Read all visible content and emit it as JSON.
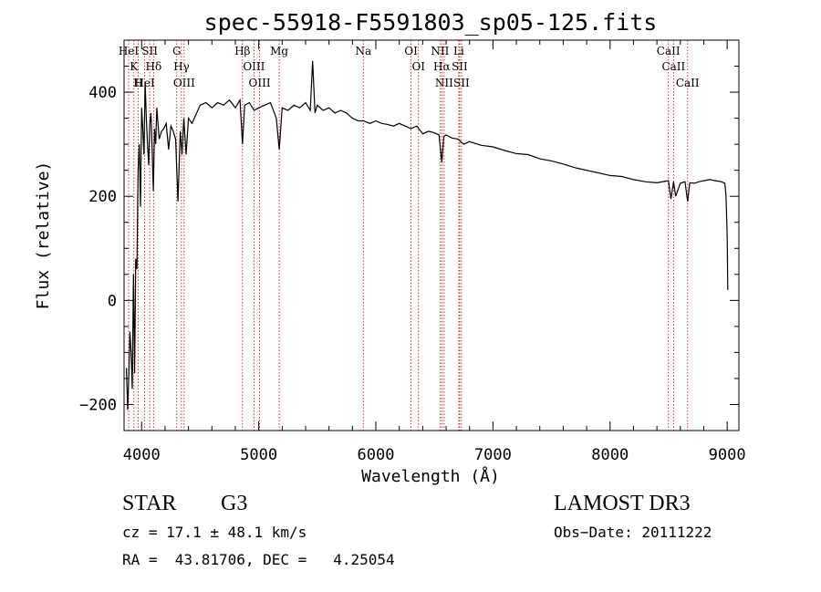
{
  "chart_data": {
    "type": "line",
    "title": "spec-55918-F5591803_sp05-125.fits",
    "xlabel": "Wavelength (Å)",
    "ylabel": "Flux (relative)",
    "xlim": [
      3850,
      9100
    ],
    "ylim": [
      -250,
      500
    ],
    "x_ticks": [
      4000,
      5000,
      6000,
      7000,
      8000,
      9000
    ],
    "x_tick_labels": [
      "4000",
      "5000",
      "6000",
      "7000",
      "8000",
      "9000"
    ],
    "y_ticks": [
      -200,
      0,
      200,
      400
    ],
    "y_tick_labels": [
      "−200",
      "0",
      "200",
      "400"
    ],
    "x_minor_step": 200,
    "y_minor_step": 50,
    "grid": false,
    "spectrum_color": "#000000",
    "line_marker_color": "#cc0000",
    "series": [
      {
        "name": "flux",
        "x": [
          3870,
          3880,
          3890,
          3900,
          3910,
          3920,
          3930,
          3940,
          3950,
          3960,
          3970,
          3980,
          3990,
          4000,
          4010,
          4020,
          4030,
          4040,
          4050,
          4060,
          4070,
          4080,
          4090,
          4100,
          4110,
          4120,
          4130,
          4140,
          4150,
          4170,
          4190,
          4210,
          4230,
          4250,
          4270,
          4290,
          4310,
          4330,
          4345,
          4360,
          4380,
          4400,
          4430,
          4460,
          4500,
          4550,
          4600,
          4650,
          4700,
          4750,
          4800,
          4840,
          4861,
          4880,
          4920,
          4960,
          5000,
          5050,
          5100,
          5150,
          5175,
          5200,
          5250,
          5300,
          5350,
          5400,
          5440,
          5460,
          5480,
          5500,
          5550,
          5600,
          5650,
          5700,
          5750,
          5800,
          5850,
          5893,
          5950,
          6000,
          6050,
          6100,
          6150,
          6200,
          6250,
          6300,
          6350,
          6400,
          6450,
          6500,
          6540,
          6563,
          6580,
          6600,
          6650,
          6700,
          6750,
          6800,
          6900,
          7000,
          7100,
          7200,
          7300,
          7400,
          7500,
          7600,
          7700,
          7800,
          7900,
          8000,
          8100,
          8200,
          8300,
          8400,
          8498,
          8520,
          8542,
          8560,
          8600,
          8640,
          8662,
          8680,
          8720,
          8760,
          8800,
          8850,
          8900,
          8950,
          8980,
          8990,
          9000,
          9005
        ],
        "values": [
          -130,
          -210,
          -150,
          -60,
          -100,
          -170,
          50,
          -140,
          80,
          60,
          250,
          300,
          180,
          370,
          330,
          280,
          420,
          350,
          300,
          260,
          340,
          360,
          290,
          210,
          330,
          300,
          370,
          340,
          310,
          325,
          330,
          340,
          290,
          335,
          325,
          310,
          190,
          325,
          280,
          350,
          280,
          350,
          340,
          355,
          375,
          380,
          370,
          380,
          375,
          385,
          370,
          385,
          300,
          375,
          380,
          365,
          370,
          375,
          380,
          350,
          290,
          370,
          365,
          375,
          370,
          380,
          365,
          460,
          360,
          375,
          365,
          370,
          360,
          365,
          360,
          350,
          345,
          345,
          340,
          345,
          340,
          338,
          335,
          340,
          335,
          330,
          335,
          320,
          325,
          322,
          318,
          265,
          315,
          318,
          312,
          310,
          300,
          305,
          298,
          295,
          288,
          282,
          280,
          272,
          268,
          262,
          255,
          250,
          245,
          240,
          238,
          232,
          228,
          226,
          230,
          195,
          228,
          200,
          225,
          228,
          190,
          226,
          225,
          228,
          230,
          232,
          230,
          228,
          225,
          200,
          120,
          20
        ]
      }
    ],
    "emission_lines": [
      {
        "wl": 3889,
        "label": "HeI"
      },
      {
        "wl": 3934,
        "label": "K"
      },
      {
        "wl": 3970,
        "label": "H"
      },
      {
        "wl": 4026,
        "label": "HeI"
      },
      {
        "wl": 4069,
        "label": "SII"
      },
      {
        "wl": 4102,
        "label": "Hδ"
      },
      {
        "wl": 4300,
        "label": "G"
      },
      {
        "wl": 4340,
        "label": "Hγ"
      },
      {
        "wl": 4363,
        "label": "OIII"
      },
      {
        "wl": 4861,
        "label": "Hβ"
      },
      {
        "wl": 4959,
        "label": "OIII"
      },
      {
        "wl": 5007,
        "label": "OIII"
      },
      {
        "wl": 5175,
        "label": "Mg"
      },
      {
        "wl": 5893,
        "label": "Na"
      },
      {
        "wl": 6300,
        "label": "OI"
      },
      {
        "wl": 6364,
        "label": "OI"
      },
      {
        "wl": 6548,
        "label": "NII"
      },
      {
        "wl": 6563,
        "label": "Hα"
      },
      {
        "wl": 6583,
        "label": "NII"
      },
      {
        "wl": 6708,
        "label": "Li"
      },
      {
        "wl": 6716,
        "label": "SII"
      },
      {
        "wl": 6731,
        "label": "SII"
      },
      {
        "wl": 8498,
        "label": "CaII"
      },
      {
        "wl": 8542,
        "label": "CaII"
      },
      {
        "wl": 8662,
        "label": "CaII"
      }
    ]
  },
  "footer": {
    "object_class": "STAR",
    "subclass": "G3",
    "survey": "LAMOST DR3",
    "velocity": "cz = 17.1 ± 48.1 km/s",
    "obs_date": "Obs−Date: 20111222",
    "coords": "RA =  43.81706, DEC =   4.25054"
  }
}
